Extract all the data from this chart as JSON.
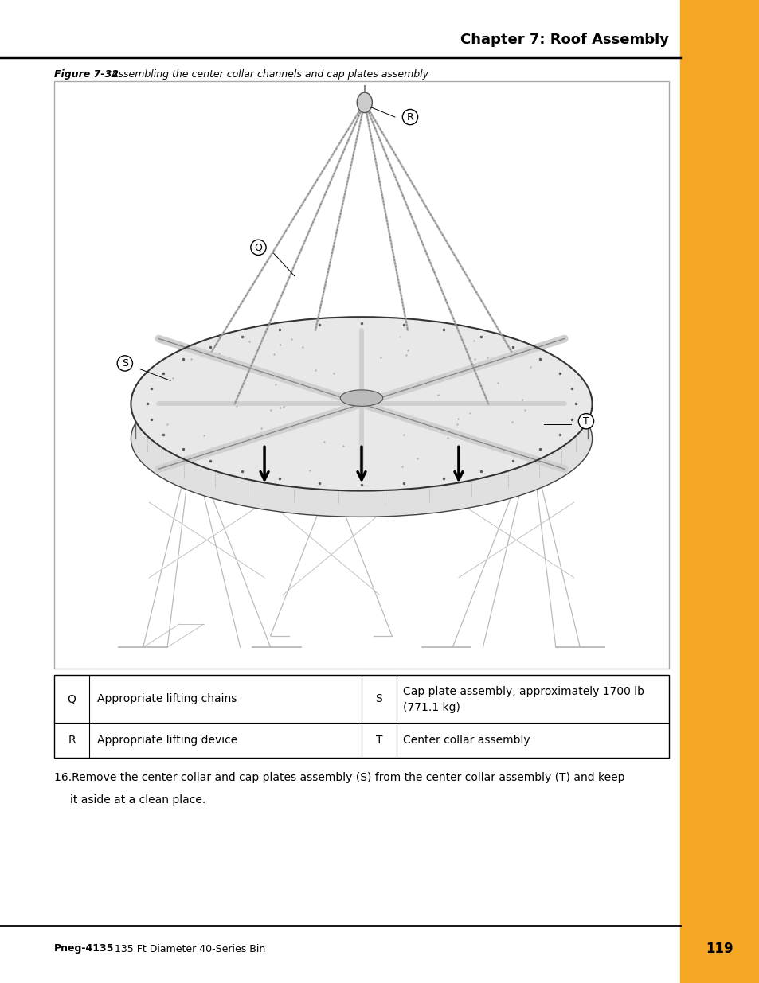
{
  "page_bg": "#ffffff",
  "orange_bar_color": "#F5A623",
  "header_title": "Chapter 7: Roof Assembly",
  "figure_caption_bold": "Figure 7-32",
  "figure_caption_italic": " Assembling the center collar channels and cap plates assembly",
  "table_rows": [
    [
      "Q",
      "Appropriate lifting chains",
      "S",
      "Cap plate assembly, approximately 1700 lb\n(771.1 kg)"
    ],
    [
      "R",
      "Appropriate lifting device",
      "T",
      "Center collar assembly"
    ]
  ],
  "body_text_line1": "16.Remove the center collar and cap plates assembly (S) from the center collar assembly (T) and keep",
  "body_text_line2": "      it aside at a clean place.",
  "footer_bold": "Pneg-4135",
  "footer_normal": " 135 Ft Diameter 40-Series Bin",
  "footer_page": "119"
}
